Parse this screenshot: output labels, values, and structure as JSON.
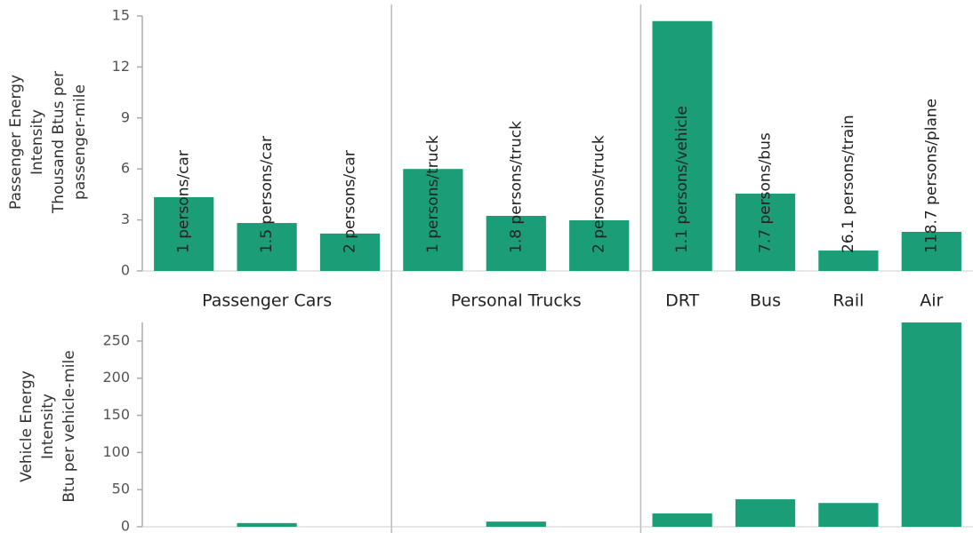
{
  "chart_data": [
    {
      "type": "bar",
      "ylabel": [
        "Passenger Energy",
        "Intensity",
        "Thousand Btus per",
        "passenger-mile"
      ],
      "categories": [
        "1 persons/car",
        "1.5 persons/car",
        "2 persons/car",
        "1 persons/truck",
        "1.8 persons/truck",
        "2 persons/truck",
        "1.1 persons/vehicle",
        "7.7 persons/bus",
        "26.1 persons/train",
        "118.7 persons/plane"
      ],
      "groups": [
        {
          "name": "Passenger Cars",
          "count": 3
        },
        {
          "name": "Personal Trucks",
          "count": 3
        },
        {
          "name": "DRT",
          "count": 1
        },
        {
          "name": "Bus",
          "count": 1
        },
        {
          "name": "Rail",
          "count": 1
        },
        {
          "name": "Air",
          "count": 1
        }
      ],
      "values": [
        4.34,
        2.82,
        2.2,
        6.0,
        3.24,
        2.98,
        14.7,
        4.55,
        1.2,
        2.3
      ],
      "color": "#1b9e77",
      "ylim": [
        0,
        15
      ],
      "yticks": [
        0,
        3,
        6,
        9,
        12,
        15
      ]
    },
    {
      "type": "bar",
      "ylabel": [
        "Vehicle Energy",
        "Intensity",
        "Btu per vehicle-mile"
      ],
      "values": [
        0,
        5,
        0,
        0,
        7,
        0,
        18,
        37,
        32,
        275
      ],
      "color": "#1b9e77",
      "ylim": [
        0,
        275
      ],
      "yticks": [
        0,
        50,
        100,
        150,
        200,
        250
      ]
    }
  ]
}
